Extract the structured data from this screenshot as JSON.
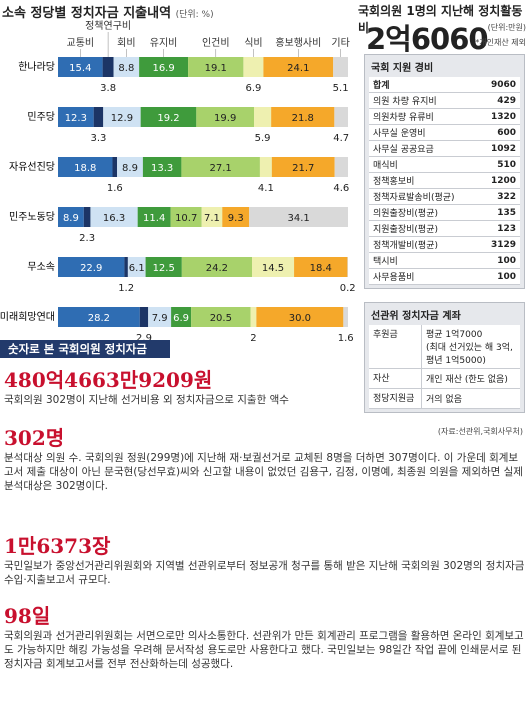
{
  "chart_data": {
    "type": "stacked-bar",
    "title": "소속 정당별 정치자금 지출내역",
    "unit": "(단위: %)",
    "categories": [
      "한나라당",
      "민주당",
      "자유선진당",
      "민주노동당",
      "무소속",
      "미래희망연대"
    ],
    "series": [
      {
        "name": "교통비",
        "color": "#2f6db3",
        "values": [
          15.4,
          12.3,
          18.8,
          8.9,
          22.9,
          28.2
        ]
      },
      {
        "name": "정책연구비",
        "color": "#1c3566",
        "values": [
          3.8,
          3.3,
          1.6,
          2.3,
          1.2,
          2.9
        ]
      },
      {
        "name": "회비",
        "color": "#cfe2f3",
        "values": [
          8.8,
          12.9,
          8.9,
          16.3,
          6.1,
          7.9
        ]
      },
      {
        "name": "유지비",
        "color": "#3f9b3c",
        "values": [
          16.9,
          19.2,
          13.3,
          11.4,
          12.5,
          6.9
        ]
      },
      {
        "name": "인건비",
        "color": "#a8d26b",
        "values": [
          19.1,
          19.9,
          27.1,
          10.7,
          24.2,
          20.5
        ]
      },
      {
        "name": "식비",
        "color": "#eef0b0",
        "values": [
          6.9,
          5.9,
          4.1,
          7.1,
          14.5,
          2.0
        ]
      },
      {
        "name": "홍보행사비",
        "color": "#f5a82a",
        "values": [
          24.1,
          21.8,
          21.7,
          9.3,
          18.4,
          30.0
        ],
        "value_labels": [
          "24.1",
          "21.8",
          "21.7",
          "9.3",
          "18.4",
          "30.0"
        ]
      },
      {
        "name": "기타",
        "color": "#d9d9d9",
        "values": [
          5.1,
          4.7,
          4.6,
          34.1,
          0.2,
          1.6
        ]
      }
    ]
  },
  "activity_cost": {
    "title": "국회의원 1명의 지난해 정치활동비",
    "total": "2억6060",
    "unit": "(단위:만원)",
    "note": "*개인재산 제외",
    "support_table": {
      "title": "국회 지원 경비",
      "rows": [
        [
          "합계",
          9060
        ],
        [
          "의원 차량 유지비",
          429
        ],
        [
          "의원차량 유류비",
          1320
        ],
        [
          "사무실 운영비",
          600
        ],
        [
          "사무실 공공요금",
          1092
        ],
        [
          "매식비",
          510
        ],
        [
          "정책홍보비",
          1200
        ],
        [
          "정책자료발송비(평균)",
          322
        ],
        [
          "의원출장비(평균)",
          135
        ],
        [
          "지원출장비(평균)",
          123
        ],
        [
          "정책개발비(평균)",
          3129
        ],
        [
          "택시비",
          100
        ],
        [
          "사무용품비",
          100
        ]
      ]
    },
    "account_table": {
      "title": "선관위 정치자금 계좌",
      "rows": [
        [
          "후원금",
          [
            "평균 1억7000",
            "(최대 선거있는 해 3억,",
            "평년 1억5000)"
          ]
        ],
        [
          "자산",
          [
            "개인 재산 (한도 없음)"
          ]
        ],
        [
          "정당지원금",
          [
            "거의 없음"
          ]
        ]
      ]
    },
    "source": "(자료:선관위,국회사무처)"
  },
  "facts": {
    "title": "숫자로 본 국회의원 정치자금",
    "items": [
      {
        "figure": "480억4663만9209원",
        "text": "국회의원 302명이 지난해 선거비용 외 정치자금으로 지출한 액수"
      },
      {
        "figure": "302명",
        "text": "분석대상 의원 수. 국회의원 정원(299명)에 지난해 재·보궐선거로 교체된 8명을 더하면 307명이다. 이 가운데 회계보고서 제출 대상이 아닌 문국현(당선무효)씨와 신고할 내용이 없었던 김용구, 김정, 이명예, 최종원 의원을 제외하면 실제 분석대상은 302명이다."
      },
      {
        "figure": "1만6373장",
        "text": "국민일보가 중앙선거관리위원회와 지역별 선관위로부터 정보공개 청구를 통해 받은 지난해 국회의원 302명의 정치자금 수입·지출보고서 규모다."
      },
      {
        "figure": "98일",
        "text": "국회의원과 선거관리위원회는 서면으로만 의사소통한다. 선관위가 만든 회계관리 프로그램을 활용하면 온라인 회계보고도 가능하지만 해킹 가능성을 우려해 문서작성 용도로만 사용한다고 했다. 국민일보는 98일간 작업 끝에 인쇄문서로 된 정치자금 회계보고서를 전부 전산화하는데 성공했다."
      }
    ]
  }
}
